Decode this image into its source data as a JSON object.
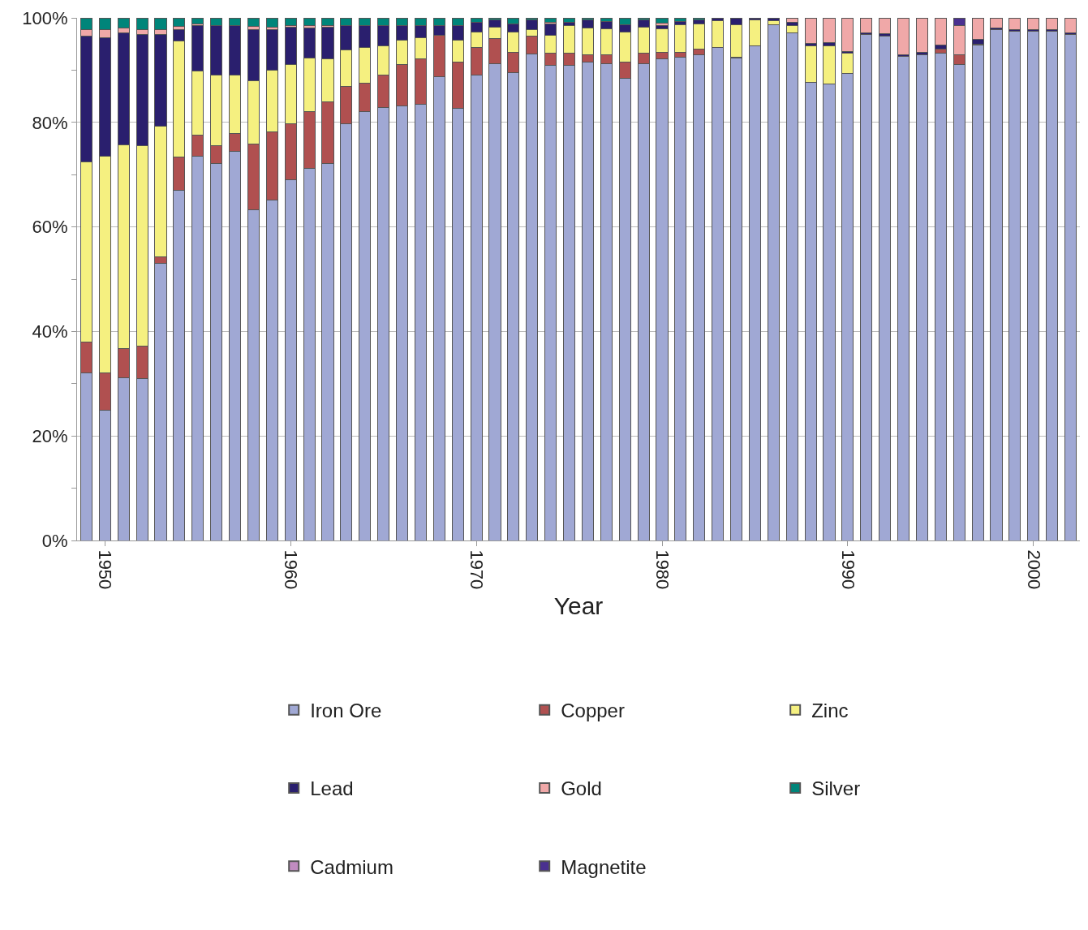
{
  "chart_data": {
    "type": "bar",
    "stacked": true,
    "xlabel": "Year",
    "x": [
      1949,
      1950,
      1951,
      1952,
      1953,
      1954,
      1955,
      1956,
      1957,
      1958,
      1959,
      1960,
      1961,
      1962,
      1963,
      1964,
      1965,
      1966,
      1967,
      1968,
      1969,
      1970,
      1971,
      1972,
      1973,
      1974,
      1975,
      1976,
      1977,
      1978,
      1979,
      1980,
      1981,
      1982,
      1983,
      1984,
      1985,
      1986,
      1987,
      1988,
      1989,
      1990,
      1991,
      1992,
      1993,
      1994,
      1995,
      1996,
      1997,
      1998,
      1999,
      2000,
      2001,
      2002
    ],
    "xlim": [
      1948.5,
      2002.5
    ],
    "xticks": [
      1950,
      1960,
      1970,
      1980,
      1990,
      2000
    ],
    "ylim": [
      0,
      100
    ],
    "yticks": [
      {
        "value": 0,
        "label": "0%"
      },
      {
        "value": 10,
        "label": null
      },
      {
        "value": 20,
        "label": "20%"
      },
      {
        "value": 30,
        "label": null
      },
      {
        "value": 40,
        "label": "40%"
      },
      {
        "value": 50,
        "label": null
      },
      {
        "value": 60,
        "label": "60%"
      },
      {
        "value": 70,
        "label": null
      },
      {
        "value": 80,
        "label": "80%"
      },
      {
        "value": 90,
        "label": null
      },
      {
        "value": 100,
        "label": "100%"
      }
    ],
    "grid": "y",
    "legend": "bottom",
    "series": [
      {
        "name": "Iron Ore",
        "color": "#a0a8d4",
        "values": [
          32,
          25,
          31.2,
          31,
          53,
          67,
          73.6,
          72.2,
          74.5,
          63.3,
          65.2,
          69,
          71.2,
          72.2,
          79.8,
          82.1,
          82.9,
          83.2,
          83.5,
          88.8,
          82.7,
          89,
          91.2,
          89.5,
          93.1,
          90.9,
          90.9,
          91.6,
          91.2,
          88.5,
          91.2,
          92.1,
          92.4,
          92.9,
          94.3,
          92.3,
          94.7,
          98.7,
          97.1,
          87.7,
          87.4,
          89.3,
          96.8,
          96.5,
          92.6,
          93,
          93.2,
          91.1,
          94.8,
          97.7,
          97.4,
          97.4,
          97.4,
          96.8
        ]
      },
      {
        "name": "Copper",
        "color": "#b05050",
        "values": [
          6,
          7,
          5.5,
          6.2,
          1.2,
          6.3,
          3.9,
          3.3,
          3.3,
          12.5,
          13,
          10.8,
          10.8,
          11.8,
          7.1,
          5.4,
          6.1,
          7.8,
          8.7,
          7.8,
          8.9,
          5.3,
          4.8,
          3.9,
          3.4,
          2.3,
          2.3,
          1.4,
          1.8,
          3.1,
          2,
          1.3,
          1,
          1.2,
          null,
          0.2,
          null,
          null,
          null,
          null,
          null,
          null,
          null,
          null,
          null,
          null,
          0.8,
          1.9,
          0.2,
          null,
          null,
          null,
          null,
          null
        ]
      },
      {
        "name": "Zinc",
        "color": "#f5f080",
        "values": [
          34.5,
          41.5,
          39,
          38.3,
          25.1,
          22.2,
          12.3,
          13.5,
          11.2,
          12.2,
          11.8,
          11.2,
          10.3,
          8.2,
          7,
          6.8,
          5.6,
          4.7,
          4,
          null,
          4.1,
          3,
          2.2,
          3.9,
          1.3,
          3.4,
          5.3,
          5.1,
          4.9,
          5.7,
          5,
          4.5,
          5.3,
          4.7,
          5.2,
          6.2,
          4.9,
          0.8,
          1.5,
          6.9,
          7.3,
          3.9,
          null,
          null,
          null,
          null,
          null,
          null,
          null,
          null,
          null,
          null,
          null,
          null
        ]
      },
      {
        "name": "Lead",
        "color": "#2a1f6e",
        "values": [
          24,
          22.7,
          21.5,
          21.3,
          17.5,
          2.3,
          8.7,
          9.5,
          9.6,
          9.8,
          7.8,
          7.2,
          5.7,
          6,
          4.6,
          4.2,
          3.9,
          2.8,
          2.3,
          1.9,
          2.8,
          1.8,
          1.4,
          1.5,
          1.8,
          2.2,
          0.7,
          1.5,
          1.4,
          1.4,
          1.4,
          0.7,
          0.6,
          0.8,
          0.5,
          1.3,
          0.4,
          0.5,
          0.5,
          0.5,
          0.5,
          0.4,
          0.4,
          0.4,
          0.4,
          0.4,
          0.8,
          null,
          0.9,
          0.4,
          0.4,
          0.4,
          0.4,
          0.4
        ]
      },
      {
        "name": "Gold",
        "color": "#f0a8a8",
        "values": [
          1.2,
          1.5,
          0.8,
          1,
          1,
          0.5,
          0.3,
          null,
          null,
          0.5,
          0.4,
          0.3,
          0.5,
          0.3,
          null,
          null,
          null,
          null,
          null,
          null,
          null,
          null,
          null,
          null,
          null,
          0.3,
          null,
          null,
          null,
          null,
          null,
          0.4,
          null,
          null,
          null,
          null,
          null,
          null,
          0.9,
          4.9,
          4.8,
          6.4,
          2.8,
          3.1,
          7,
          6.6,
          5.2,
          5.5,
          4.1,
          1.9,
          2.2,
          2.2,
          2.2,
          2.8
        ]
      },
      {
        "name": "Silver",
        "color": "#00857a",
        "values": [
          2.3,
          2.3,
          2,
          2.2,
          2.2,
          1.7,
          1.2,
          1.5,
          1.4,
          1.7,
          1.8,
          1.5,
          1.5,
          1.5,
          1.5,
          1.5,
          1.5,
          1.5,
          1.5,
          1.5,
          1.5,
          0.9,
          0.4,
          1.2,
          0.4,
          0.9,
          0.8,
          0.4,
          0.7,
          1.3,
          0.4,
          1,
          0.7,
          0.4,
          null,
          null,
          null,
          null,
          null,
          null,
          null,
          null,
          null,
          null,
          null,
          null,
          null,
          null,
          null,
          null,
          null,
          null,
          null,
          null
        ]
      },
      {
        "name": "Cadmium",
        "color": "#c08cc0",
        "values": [
          null,
          null,
          null,
          null,
          null,
          null,
          null,
          null,
          null,
          null,
          null,
          null,
          null,
          null,
          null,
          null,
          null,
          null,
          null,
          null,
          null,
          null,
          null,
          null,
          null,
          null,
          null,
          null,
          null,
          null,
          null,
          null,
          null,
          null,
          null,
          null,
          null,
          null,
          null,
          null,
          null,
          null,
          null,
          null,
          null,
          null,
          null,
          null,
          null,
          null,
          null,
          null,
          null,
          null
        ]
      },
      {
        "name": "Magnetite",
        "color": "#4a3090",
        "values": [
          null,
          null,
          null,
          null,
          null,
          null,
          null,
          null,
          null,
          null,
          null,
          null,
          null,
          null,
          null,
          null,
          null,
          null,
          null,
          null,
          null,
          null,
          null,
          null,
          null,
          null,
          null,
          null,
          null,
          null,
          null,
          null,
          null,
          null,
          null,
          null,
          null,
          null,
          null,
          null,
          null,
          null,
          null,
          null,
          null,
          null,
          null,
          1.5,
          null,
          null,
          null,
          null,
          null,
          null
        ]
      }
    ]
  }
}
